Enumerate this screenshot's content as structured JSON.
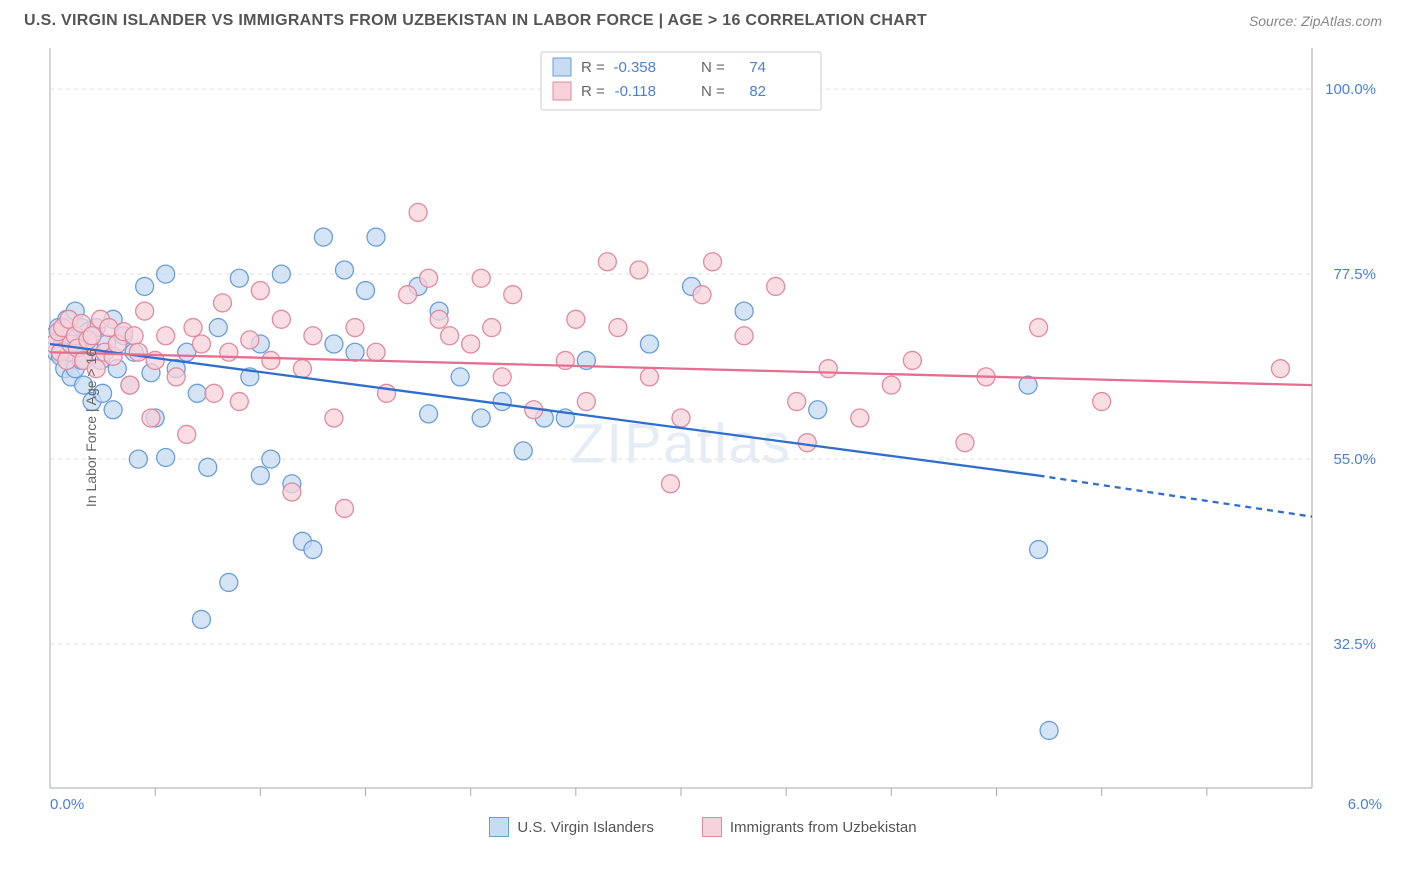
{
  "title": "U.S. VIRGIN ISLANDER VS IMMIGRANTS FROM UZBEKISTAN IN LABOR FORCE | AGE > 16 CORRELATION CHART",
  "source": "Source: ZipAtlas.com",
  "ylabel": "In Labor Force | Age > 16",
  "watermark": "ZIPatlas",
  "chart": {
    "type": "scatter",
    "background_color": "#ffffff",
    "grid_color": "#dddddd",
    "axis_color": "#aaaaaa",
    "tick_label_color": "#4a80d6",
    "xlim": [
      0.0,
      6.0
    ],
    "ylim": [
      15,
      105
    ],
    "ytick_values": [
      32.5,
      55.0,
      77.5,
      100.0
    ],
    "ytick_labels": [
      "32.5%",
      "55.0%",
      "77.5%",
      "100.0%"
    ],
    "xtick_values": [
      0.5,
      1.0,
      1.5,
      2.0,
      2.5,
      3.0,
      3.5,
      4.0,
      4.5,
      5.0,
      5.5
    ],
    "xaxis_ends": [
      "0.0%",
      "6.0%"
    ],
    "marker_radius": 9,
    "marker_stroke_width": 1.3,
    "line_width": 2.3
  },
  "series": [
    {
      "name": "U.S. Virgin Islanders",
      "fill": "#c7dbf2",
      "stroke": "#6a9ed9",
      "line_color": "#2f6ecc",
      "R": "-0.358",
      "N": "74",
      "trend": {
        "x1": 0.0,
        "y1": 69.0,
        "x2": 4.7,
        "y2": 53.0,
        "dash_to_x": 6.0,
        "dash_to_y": 48.0
      },
      "points": [
        [
          0.02,
          70
        ],
        [
          0.03,
          68
        ],
        [
          0.04,
          71
        ],
        [
          0.05,
          67.5
        ],
        [
          0.06,
          69
        ],
        [
          0.07,
          66
        ],
        [
          0.08,
          72
        ],
        [
          0.09,
          68
        ],
        [
          0.1,
          65
        ],
        [
          0.1,
          70
        ],
        [
          0.12,
          66
        ],
        [
          0.12,
          73
        ],
        [
          0.14,
          69
        ],
        [
          0.15,
          67
        ],
        [
          0.15,
          71
        ],
        [
          0.16,
          64
        ],
        [
          0.18,
          70.5
        ],
        [
          0.2,
          68
        ],
        [
          0.2,
          62
        ],
        [
          0.22,
          71
        ],
        [
          0.24,
          67
        ],
        [
          0.25,
          63
        ],
        [
          0.27,
          69
        ],
        [
          0.3,
          61
        ],
        [
          0.3,
          72
        ],
        [
          0.32,
          66
        ],
        [
          0.35,
          70
        ],
        [
          0.38,
          64
        ],
        [
          0.4,
          68
        ],
        [
          0.42,
          55
        ],
        [
          0.45,
          76
        ],
        [
          0.48,
          65.5
        ],
        [
          0.5,
          60
        ],
        [
          0.55,
          77.5
        ],
        [
          0.55,
          55.2
        ],
        [
          0.6,
          66
        ],
        [
          0.65,
          68
        ],
        [
          0.7,
          63
        ],
        [
          0.72,
          35.5
        ],
        [
          0.75,
          54
        ],
        [
          0.8,
          71
        ],
        [
          0.85,
          40
        ],
        [
          0.9,
          77
        ],
        [
          0.95,
          65
        ],
        [
          1.0,
          69
        ],
        [
          1.0,
          53
        ],
        [
          1.05,
          55
        ],
        [
          1.1,
          77.5
        ],
        [
          1.15,
          52
        ],
        [
          1.2,
          45
        ],
        [
          1.25,
          44
        ],
        [
          1.3,
          82
        ],
        [
          1.35,
          69
        ],
        [
          1.4,
          78
        ],
        [
          1.45,
          68
        ],
        [
          1.5,
          75.5
        ],
        [
          1.55,
          82
        ],
        [
          1.75,
          76
        ],
        [
          1.8,
          60.5
        ],
        [
          1.85,
          73
        ],
        [
          1.95,
          65
        ],
        [
          2.05,
          60
        ],
        [
          2.15,
          62
        ],
        [
          2.25,
          56
        ],
        [
          2.35,
          60
        ],
        [
          2.45,
          60
        ],
        [
          2.55,
          67
        ],
        [
          2.85,
          69
        ],
        [
          3.05,
          76
        ],
        [
          3.3,
          73
        ],
        [
          4.65,
          64
        ],
        [
          4.7,
          44
        ],
        [
          4.75,
          22
        ],
        [
          3.65,
          61
        ]
      ]
    },
    {
      "name": "Immigrants from Uzbekistan",
      "fill": "#f6d2da",
      "stroke": "#e08aa0",
      "line_color": "#e46f90",
      "R": "-0.118",
      "N": "82",
      "trend": {
        "x1": 0.0,
        "y1": 68.0,
        "x2": 6.0,
        "y2": 64.0
      },
      "points": [
        [
          0.02,
          69
        ],
        [
          0.04,
          70.5
        ],
        [
          0.05,
          68
        ],
        [
          0.06,
          71
        ],
        [
          0.08,
          67
        ],
        [
          0.09,
          72
        ],
        [
          0.1,
          69
        ],
        [
          0.12,
          70
        ],
        [
          0.13,
          68.5
        ],
        [
          0.15,
          71.5
        ],
        [
          0.16,
          67
        ],
        [
          0.18,
          69.5
        ],
        [
          0.2,
          70
        ],
        [
          0.22,
          66
        ],
        [
          0.24,
          72
        ],
        [
          0.26,
          68
        ],
        [
          0.28,
          71
        ],
        [
          0.3,
          67.5
        ],
        [
          0.32,
          69
        ],
        [
          0.35,
          70.5
        ],
        [
          0.38,
          64
        ],
        [
          0.4,
          70
        ],
        [
          0.42,
          68
        ],
        [
          0.45,
          73
        ],
        [
          0.48,
          60
        ],
        [
          0.5,
          67
        ],
        [
          0.55,
          70
        ],
        [
          0.6,
          65
        ],
        [
          0.65,
          58
        ],
        [
          0.68,
          71
        ],
        [
          0.72,
          69
        ],
        [
          0.78,
          63
        ],
        [
          0.82,
          74
        ],
        [
          0.85,
          68
        ],
        [
          0.9,
          62
        ],
        [
          0.95,
          69.5
        ],
        [
          1.0,
          75.5
        ],
        [
          1.05,
          67
        ],
        [
          1.1,
          72
        ],
        [
          1.15,
          51
        ],
        [
          1.2,
          66
        ],
        [
          1.25,
          70
        ],
        [
          1.35,
          60
        ],
        [
          1.4,
          49
        ],
        [
          1.45,
          71
        ],
        [
          1.55,
          68
        ],
        [
          1.6,
          63
        ],
        [
          1.7,
          75
        ],
        [
          1.75,
          85
        ],
        [
          1.8,
          77
        ],
        [
          1.85,
          72
        ],
        [
          1.9,
          70
        ],
        [
          2.0,
          69
        ],
        [
          2.05,
          77
        ],
        [
          2.1,
          71
        ],
        [
          2.15,
          65
        ],
        [
          2.2,
          75
        ],
        [
          2.3,
          61
        ],
        [
          2.45,
          67
        ],
        [
          2.5,
          72
        ],
        [
          2.55,
          62
        ],
        [
          2.65,
          79
        ],
        [
          2.7,
          71
        ],
        [
          2.8,
          78
        ],
        [
          2.85,
          65
        ],
        [
          2.95,
          52
        ],
        [
          3.0,
          60
        ],
        [
          3.1,
          75
        ],
        [
          3.15,
          79
        ],
        [
          3.3,
          70
        ],
        [
          3.45,
          76
        ],
        [
          3.55,
          62
        ],
        [
          3.6,
          57
        ],
        [
          3.7,
          66
        ],
        [
          3.85,
          60
        ],
        [
          4.0,
          64
        ],
        [
          4.1,
          67
        ],
        [
          4.35,
          57
        ],
        [
          4.45,
          65
        ],
        [
          4.7,
          71
        ],
        [
          5.0,
          62
        ],
        [
          5.85,
          66
        ]
      ]
    }
  ],
  "legend_stats": {
    "cols": [
      "R =",
      "N ="
    ]
  },
  "bottom_legend": [
    {
      "label": "U.S. Virgin Islanders",
      "fill": "#c7dbf2",
      "stroke": "#6a9ed9"
    },
    {
      "label": "Immigrants from Uzbekistan",
      "fill": "#f6d2da",
      "stroke": "#e08aa0"
    }
  ]
}
